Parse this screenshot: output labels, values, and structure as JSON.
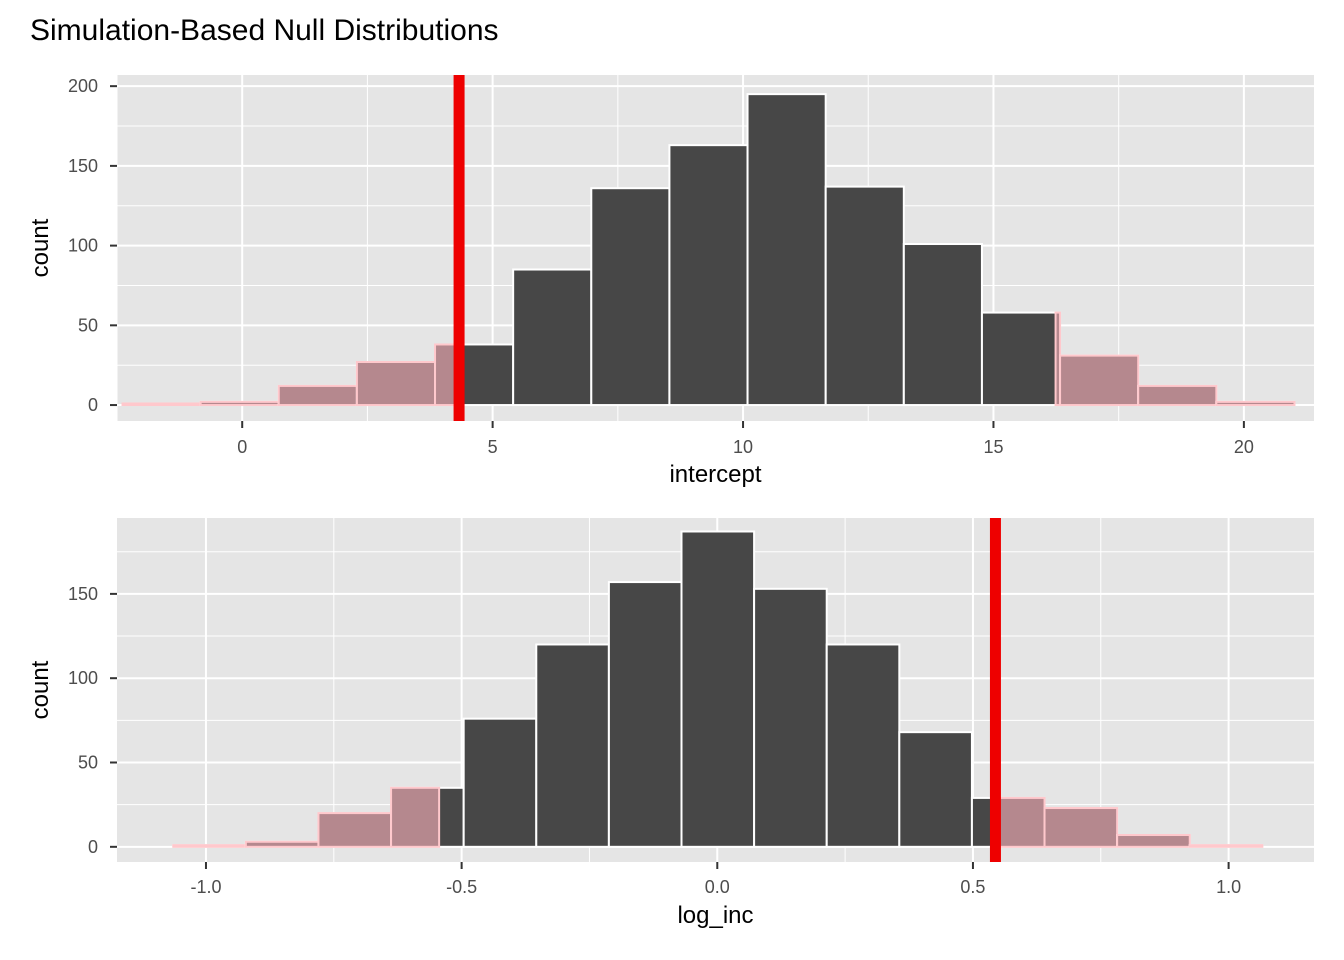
{
  "title": "Simulation-Based Null Distributions",
  "colors": {
    "panel_background": "#e5e5e5",
    "grid_line": "#ffffff",
    "bar_fill": "#474747",
    "bar_outline": "#ffffff",
    "shade_fill": "#b5888e",
    "shade_outline": "#ffc8cc",
    "observed_line": "#ee0000",
    "tick_mark": "#333333"
  },
  "chart_data": [
    {
      "type": "bar",
      "title": "",
      "xlabel": "intercept",
      "ylabel": "count",
      "xlim": [
        -2.5,
        21.4
      ],
      "ylim": [
        -10,
        207
      ],
      "x_ticks": [
        0,
        5,
        10,
        15,
        20
      ],
      "x_minor_ticks": [
        -2.5,
        2.5,
        7.5,
        12.5,
        17.5
      ],
      "y_ticks": [
        0,
        50,
        100,
        150,
        200
      ],
      "x_tick_labels": [
        "0",
        "5",
        "10",
        "15",
        "20"
      ],
      "y_tick_labels": [
        "0",
        "50",
        "100",
        "150",
        "200"
      ],
      "grid": true,
      "observed_value": 4.33,
      "shaded_regions": [
        [
          -2.5,
          4.33
        ],
        [
          16.24,
          21.4
        ]
      ],
      "bins": [
        {
          "x0": -2.39,
          "x1": -0.83,
          "count": 1
        },
        {
          "x0": -0.83,
          "x1": 0.73,
          "count": 2
        },
        {
          "x0": 0.73,
          "x1": 2.29,
          "count": 12
        },
        {
          "x0": 2.29,
          "x1": 3.85,
          "count": 27
        },
        {
          "x0": 3.85,
          "x1": 5.41,
          "count": 38
        },
        {
          "x0": 5.41,
          "x1": 6.97,
          "count": 85
        },
        {
          "x0": 6.97,
          "x1": 8.53,
          "count": 136
        },
        {
          "x0": 8.53,
          "x1": 10.09,
          "count": 163
        },
        {
          "x0": 10.09,
          "x1": 11.65,
          "count": 195
        },
        {
          "x0": 11.65,
          "x1": 13.21,
          "count": 137
        },
        {
          "x0": 13.21,
          "x1": 14.77,
          "count": 101
        },
        {
          "x0": 14.77,
          "x1": 16.33,
          "count": 58
        },
        {
          "x0": 16.33,
          "x1": 17.89,
          "count": 31
        },
        {
          "x0": 17.89,
          "x1": 19.45,
          "count": 12
        },
        {
          "x0": 19.45,
          "x1": 21.01,
          "count": 2
        }
      ]
    },
    {
      "type": "bar",
      "title": "",
      "xlabel": "log_inc",
      "ylabel": "count",
      "xlim": [
        -1.174,
        1.167
      ],
      "ylim": [
        -9,
        195
      ],
      "x_ticks": [
        -1.0,
        -0.5,
        0.0,
        0.5,
        1.0
      ],
      "x_minor_ticks": [
        -0.75,
        -0.25,
        0.25,
        0.75
      ],
      "y_ticks": [
        0,
        50,
        100,
        150
      ],
      "x_tick_labels": [
        "-1.0",
        "-0.5",
        "0.0",
        "0.5",
        "1.0"
      ],
      "y_tick_labels": [
        "0",
        "50",
        "100",
        "150"
      ],
      "grid": true,
      "observed_value": 0.544,
      "shaded_regions": [
        [
          -1.174,
          -0.544
        ],
        [
          0.544,
          1.167
        ]
      ],
      "bins": [
        {
          "x0": -1.064,
          "x1": -0.922,
          "count": 1
        },
        {
          "x0": -0.922,
          "x1": -0.78,
          "count": 3
        },
        {
          "x0": -0.78,
          "x1": -0.638,
          "count": 20
        },
        {
          "x0": -0.638,
          "x1": -0.496,
          "count": 35
        },
        {
          "x0": -0.496,
          "x1": -0.354,
          "count": 76
        },
        {
          "x0": -0.354,
          "x1": -0.212,
          "count": 120
        },
        {
          "x0": -0.212,
          "x1": -0.07,
          "count": 157
        },
        {
          "x0": -0.07,
          "x1": 0.072,
          "count": 187
        },
        {
          "x0": 0.072,
          "x1": 0.214,
          "count": 153
        },
        {
          "x0": 0.214,
          "x1": 0.356,
          "count": 120
        },
        {
          "x0": 0.356,
          "x1": 0.498,
          "count": 68
        },
        {
          "x0": 0.498,
          "x1": 0.64,
          "count": 29
        },
        {
          "x0": 0.64,
          "x1": 0.782,
          "count": 23
        },
        {
          "x0": 0.782,
          "x1": 0.924,
          "count": 7
        },
        {
          "x0": 0.924,
          "x1": 1.066,
          "count": 1
        }
      ]
    }
  ]
}
